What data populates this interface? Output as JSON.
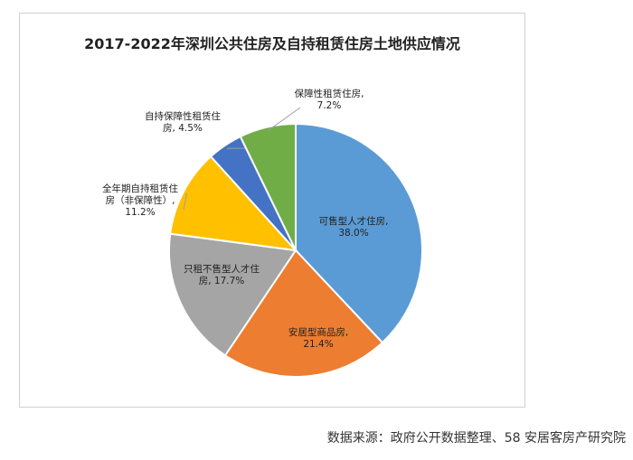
{
  "chart_data": {
    "type": "pie",
    "title": "2017-2022年深圳公共住房及自持租赁住房土地供应情况",
    "slices": [
      {
        "label_lines": [
          "可售型人才住房,",
          "38.0%"
        ],
        "value": 38.0,
        "color": "#5b9bd5"
      },
      {
        "label_lines": [
          "安居型商品房,",
          "21.4%"
        ],
        "value": 21.4,
        "color": "#ed7d31"
      },
      {
        "label_lines": [
          "只租不售型人才住",
          "房, 17.7%"
        ],
        "value": 17.7,
        "color": "#a5a5a5"
      },
      {
        "label_lines": [
          "全年期自持租赁住",
          "房（非保障性）,",
          "11.2%"
        ],
        "value": 11.2,
        "color": "#ffc000"
      },
      {
        "label_lines": [
          "自持保障性租赁住",
          "房, 4.5%"
        ],
        "value": 4.5,
        "color": "#4472c4"
      },
      {
        "label_lines": [
          "保障性租赁住房,",
          "7.2%"
        ],
        "value": 7.2,
        "color": "#70ad47"
      }
    ],
    "legend": "none"
  },
  "source": "数据来源：政府公开数据整理、58 安居客房产研究院"
}
